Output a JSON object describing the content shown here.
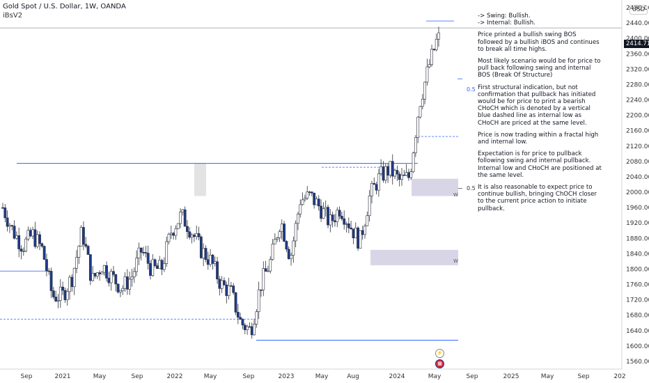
{
  "header": {
    "symbol_title": "Gold Spot / U.S. Dollar, 1W, OANDA",
    "indicator": "iBsV2"
  },
  "price_axis": {
    "currency": "USD",
    "last_price": "2414.715",
    "ticks": [
      "2480.000",
      "2440.000",
      "2400.000",
      "2360.000",
      "2320.000",
      "2280.000",
      "2240.000",
      "2200.000",
      "2160.000",
      "2120.000",
      "2080.000",
      "2040.000",
      "2000.000",
      "1960.000",
      "1920.000",
      "1880.000",
      "1840.000",
      "1800.000",
      "1760.000",
      "1720.000",
      "1680.000",
      "1640.000",
      "1600.000",
      "1560.000"
    ]
  },
  "time_axis": {
    "ticks": [
      "Sep",
      "2021",
      "May",
      "Sep",
      "2022",
      "May",
      "Sep",
      "2023",
      "May",
      "Aug",
      "2024",
      "May",
      "Sep",
      "2025",
      "May",
      "Sep",
      "202"
    ]
  },
  "notes": {
    "swing": "-> Swing: Bullish.",
    "internal": "-> Internal: Bullish.",
    "p1": "Price  printed a bullish swing BOS followed by a bullish iBOS and continues to break all time highs.",
    "p2": "Most likely scenario would be for price to pull back following swing and internal BOS (Break Of Structure)",
    "p3": "First structural indication, but not confirmation that pullback has initiated would be for price to print a bearish CHoCH which is denoted by a vertical blue dashed line as internal low as CHoCH are priced at the same level.",
    "p4": "Price is now trading within a fractal high and internal low.",
    "p5": "Expectation is for price to pullback following swing and internal pullback.  Internal low and CHoCH are positioned at the same level.",
    "p6": "It is also reasonable to expect price to continue bullish, bringing ChOCH closer to the current price action to initiate pullback."
  },
  "annotations": {
    "fib_upper": "0.5",
    "fib_lower": "0.5",
    "zone_upper_label": "W",
    "zone_lower_label": "W"
  },
  "colors": {
    "bull": "#ffffff",
    "bear": "#1e3a8a",
    "wick": "#2a2e39",
    "structure_line": "#2962ff",
    "zone_fill": "#d1cfe2",
    "highlight_fill": "#e3e3e3"
  },
  "chart_data": {
    "type": "candlestick",
    "title": "Gold Spot / U.S. Dollar, 1W, OANDA",
    "x_ticks": [
      "Sep",
      "2021",
      "May",
      "Sep",
      "2022",
      "May",
      "Sep",
      "2023",
      "May",
      "Aug",
      "2024",
      "May",
      "Sep",
      "2025",
      "May",
      "Sep",
      "202"
    ],
    "ylim": [
      1540,
      2500
    ],
    "y_unit": "USD",
    "anchor_closes": [
      {
        "x": "Sep 2020",
        "close": 1960
      },
      {
        "x": "Oct 2020",
        "close": 1900
      },
      {
        "x": "Nov 2020",
        "close": 1860
      },
      {
        "x": "Dec 2020",
        "close": 1890
      },
      {
        "x": "Jan 2021",
        "close": 1850
      },
      {
        "x": "Feb 2021",
        "close": 1730
      },
      {
        "x": "Mar 2021",
        "close": 1730
      },
      {
        "x": "Apr 2021",
        "close": 1780
      },
      {
        "x": "May 2021",
        "close": 1900
      },
      {
        "x": "Jun 2021",
        "close": 1770
      },
      {
        "x": "Jul 2021",
        "close": 1810
      },
      {
        "x": "Aug 2021",
        "close": 1780
      },
      {
        "x": "Sep 2021",
        "close": 1750
      },
      {
        "x": "Oct 2021",
        "close": 1780
      },
      {
        "x": "Nov 2021",
        "close": 1850
      },
      {
        "x": "Dec 2021",
        "close": 1800
      },
      {
        "x": "Jan 2022",
        "close": 1800
      },
      {
        "x": "Feb 2022",
        "close": 1900
      },
      {
        "x": "Mar 2022",
        "close": 1940
      },
      {
        "x": "Apr 2022",
        "close": 1900
      },
      {
        "x": "May 2022",
        "close": 1850
      },
      {
        "x": "Jun 2022",
        "close": 1820
      },
      {
        "x": "Jul 2022",
        "close": 1760
      },
      {
        "x": "Aug 2022",
        "close": 1740
      },
      {
        "x": "Sep 2022",
        "close": 1660
      },
      {
        "x": "Oct 2022",
        "close": 1640
      },
      {
        "x": "Nov 2022",
        "close": 1760
      },
      {
        "x": "Dec 2022",
        "close": 1820
      },
      {
        "x": "Jan 2023",
        "close": 1930
      },
      {
        "x": "Feb 2023",
        "close": 1830
      },
      {
        "x": "Mar 2023",
        "close": 1980
      },
      {
        "x": "Apr 2023",
        "close": 1990
      },
      {
        "x": "May 2023",
        "close": 1960
      },
      {
        "x": "Jun 2023",
        "close": 1920
      },
      {
        "x": "Jul 2023",
        "close": 1960
      },
      {
        "x": "Aug 2023",
        "close": 1915
      },
      {
        "x": "Sep 2023",
        "close": 1870
      },
      {
        "x": "Oct 2023",
        "close": 1990
      },
      {
        "x": "Nov 2023",
        "close": 2040
      },
      {
        "x": "Dec 2023",
        "close": 2060
      },
      {
        "x": "Jan 2024",
        "close": 2030
      },
      {
        "x": "Feb 2024",
        "close": 2040
      },
      {
        "x": "Mar 2024",
        "close": 2230
      },
      {
        "x": "Apr 2024",
        "close": 2330
      },
      {
        "x": "May 2024",
        "close": 2414.715
      }
    ],
    "levels": {
      "swing_high_line": 2075,
      "range_low_line": 1615,
      "all_time_high": 2431,
      "choch_level": 2145,
      "dashed_low": 1670,
      "fib_upper": 2295,
      "fib_lower": 2010,
      "demand_zone_upper": [
        1990,
        2035
      ],
      "demand_zone_lower": [
        1810,
        1850
      ]
    }
  }
}
